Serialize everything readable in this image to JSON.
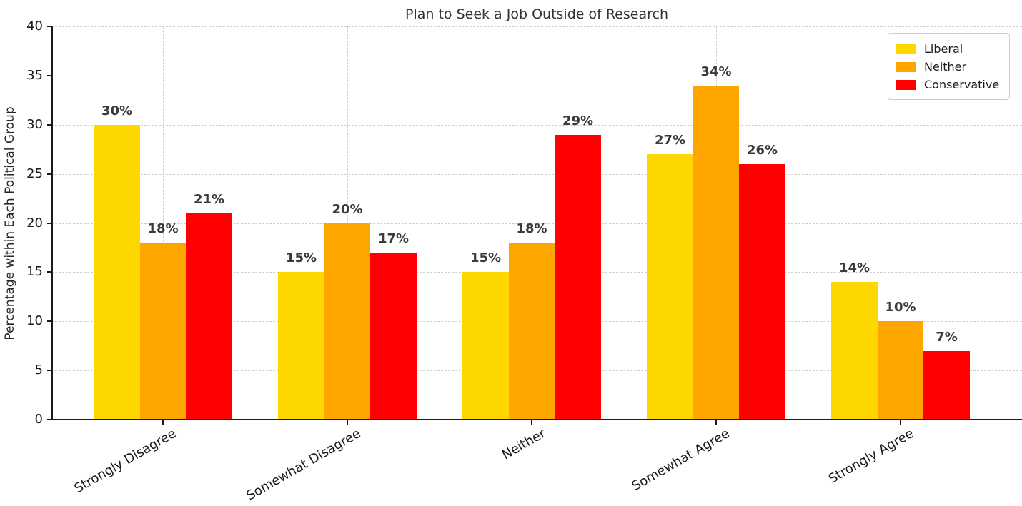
{
  "chart_data": {
    "type": "bar",
    "title": "Plan to Seek a Job Outside of Research",
    "xlabel": "",
    "ylabel": "Percentage within Each Political Group",
    "categories": [
      "Strongly Disagree",
      "Somewhat Disagree",
      "Neither",
      "Somewhat Agree",
      "Strongly Agree"
    ],
    "series": [
      {
        "name": "Liberal",
        "color": "#FFD700",
        "values": [
          30,
          15,
          15,
          27,
          14
        ]
      },
      {
        "name": "Neither",
        "color": "#FFA500",
        "values": [
          18,
          20,
          18,
          34,
          10
        ]
      },
      {
        "name": "Conservative",
        "color": "#FF0000",
        "values": [
          21,
          17,
          29,
          26,
          7
        ]
      }
    ],
    "value_label_suffix": "%",
    "ylim": [
      0,
      40
    ],
    "yticks": [
      0,
      5,
      10,
      15,
      20,
      25,
      30,
      35,
      40
    ],
    "grid": "dashed, horizontal and vertical",
    "legend_position": "upper right",
    "colors": {
      "grid": "#cfcfcf",
      "axis": "#1a1a1a",
      "title_text": "#333333",
      "tick_text": "#1a1a1a",
      "value_label_text": "#3a3a3a",
      "background": "#ffffff"
    }
  }
}
